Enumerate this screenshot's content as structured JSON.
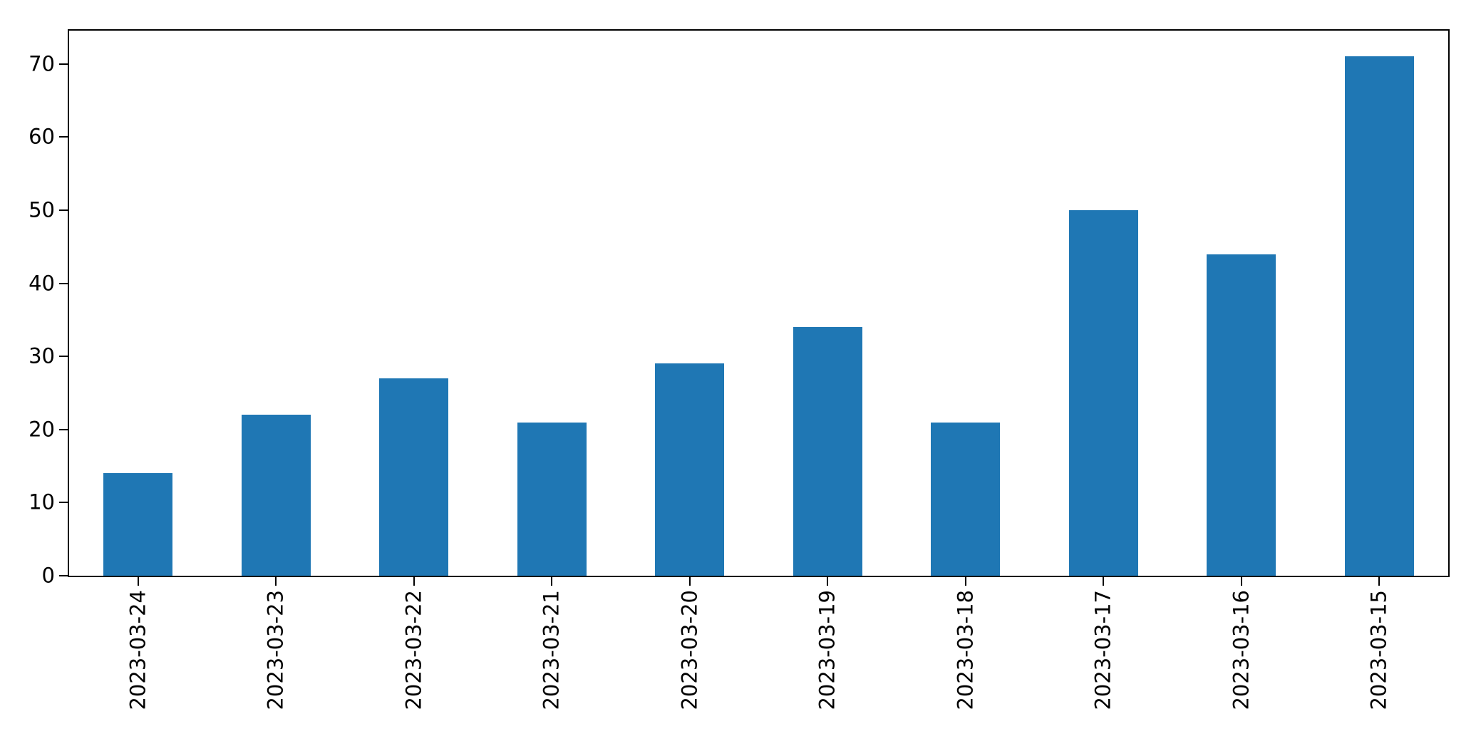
{
  "figure": {
    "background": "#ffffff",
    "spine_color": "#000000",
    "text_color": "#000000"
  },
  "chart_data": {
    "type": "bar",
    "title": "",
    "xlabel": "",
    "ylabel": "",
    "categories": [
      "2023-03-24",
      "2023-03-23",
      "2023-03-22",
      "2023-03-21",
      "2023-03-20",
      "2023-03-19",
      "2023-03-18",
      "2023-03-17",
      "2023-03-16",
      "2023-03-15"
    ],
    "values": [
      14,
      22,
      27,
      21,
      29,
      34,
      21,
      50,
      44,
      71
    ],
    "yticks": [
      0,
      10,
      20,
      30,
      40,
      50,
      60,
      70
    ],
    "ytick_labels": [
      "0",
      "10",
      "20",
      "30",
      "40",
      "50",
      "60",
      "70"
    ],
    "ylim": [
      0,
      74.55
    ],
    "bar_color": "#1f77b4",
    "bar_width_fraction": 0.5,
    "x_tick_rotation_deg": 90,
    "grid": false,
    "legend": false
  }
}
